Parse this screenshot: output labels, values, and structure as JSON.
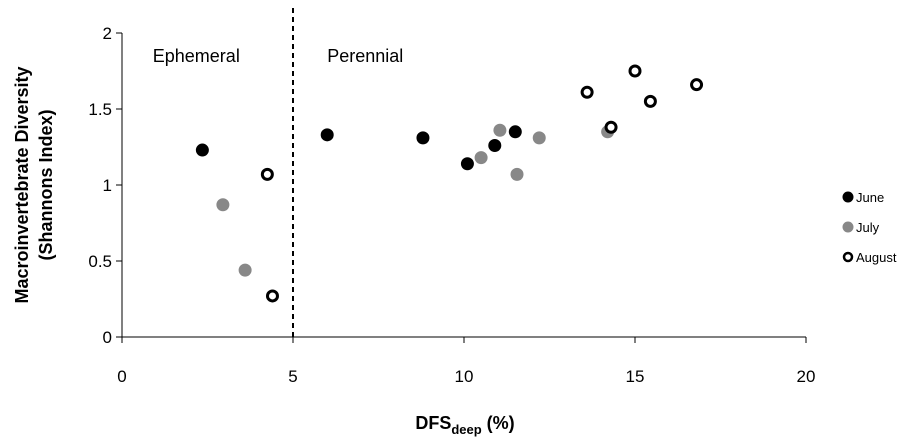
{
  "chart_data": {
    "type": "scatter",
    "xlabel_main": "DFS",
    "xlabel_sub": "deep",
    "xlabel_unit": " (%)",
    "ylabel_line1": "Macroinvertebrate Diversity",
    "ylabel_line2": "(Shannons Index)",
    "xlim": [
      0,
      20
    ],
    "ylim": [
      0,
      2
    ],
    "x_ticks": [
      "0",
      "5",
      "10",
      "15",
      "20"
    ],
    "y_ticks": [
      "0",
      "0.5",
      "1",
      "1.5",
      "2"
    ],
    "grid": false,
    "legend_position": "right",
    "divider": {
      "x": 5,
      "style": "dashed"
    },
    "annotations": [
      {
        "text": "Ephemeral",
        "x": 0.9,
        "y": 1.85
      },
      {
        "text": "Perennial",
        "x": 6.0,
        "y": 1.85
      }
    ],
    "series": [
      {
        "name": "June",
        "marker": "filled",
        "color": "#000000",
        "points": [
          {
            "x": 2.35,
            "y": 1.23
          },
          {
            "x": 6.0,
            "y": 1.33
          },
          {
            "x": 8.8,
            "y": 1.31
          },
          {
            "x": 10.1,
            "y": 1.14
          },
          {
            "x": 10.9,
            "y": 1.26
          },
          {
            "x": 11.5,
            "y": 1.35
          }
        ]
      },
      {
        "name": "July",
        "marker": "filled",
        "color": "#888888",
        "points": [
          {
            "x": 2.95,
            "y": 0.87
          },
          {
            "x": 3.6,
            "y": 0.44
          },
          {
            "x": 10.5,
            "y": 1.18
          },
          {
            "x": 11.05,
            "y": 1.36
          },
          {
            "x": 11.55,
            "y": 1.07
          },
          {
            "x": 12.2,
            "y": 1.31
          },
          {
            "x": 14.2,
            "y": 1.35
          }
        ]
      },
      {
        "name": "August",
        "marker": "hollow",
        "color": "#000000",
        "points": [
          {
            "x": 4.25,
            "y": 1.07
          },
          {
            "x": 4.4,
            "y": 0.27
          },
          {
            "x": 13.6,
            "y": 1.61
          },
          {
            "x": 14.3,
            "y": 1.38
          },
          {
            "x": 15.0,
            "y": 1.75
          },
          {
            "x": 15.45,
            "y": 1.55
          },
          {
            "x": 16.8,
            "y": 1.66
          }
        ]
      }
    ]
  }
}
